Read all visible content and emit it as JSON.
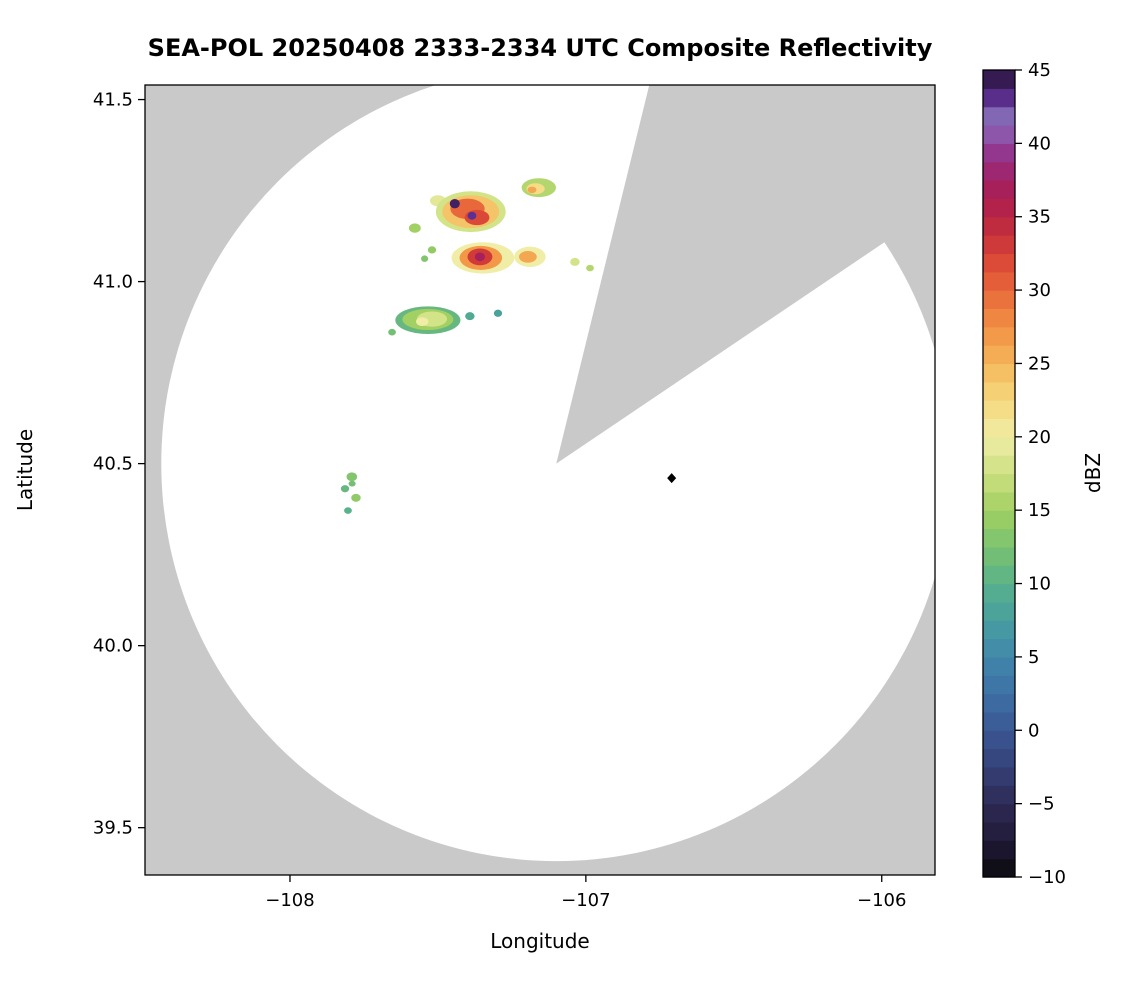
{
  "chart_data": {
    "type": "heatmap",
    "title": "SEA-POL 20250408 2333-2334 UTC Composite Reflectivity",
    "xlabel": "Longitude",
    "ylabel": "Latitude",
    "xlim": [
      -108.49,
      -105.82
    ],
    "ylim": [
      39.37,
      41.54
    ],
    "grid": false,
    "outside_fill": "#c9c9c9",
    "plot_fill": "#ffffff",
    "xticks": [
      {
        "value": -108,
        "label": "−108"
      },
      {
        "value": -107,
        "label": "−107"
      },
      {
        "value": -106,
        "label": "−106"
      }
    ],
    "yticks": [
      {
        "value": 39.5,
        "label": "39.5"
      },
      {
        "value": 40.0,
        "label": "40.0"
      },
      {
        "value": 40.5,
        "label": "40.5"
      },
      {
        "value": 41.0,
        "label": "41.0"
      },
      {
        "value": 41.5,
        "label": "41.5"
      }
    ],
    "coverage": {
      "center_lon": -107.1,
      "center_lat": 40.5,
      "radius_lon_deg": 1.335,
      "radius_lat_deg": 1.092,
      "fill": "#ffffff"
    },
    "blanked_sector": {
      "azimuth_start_deg": 13.8,
      "azimuth_end_deg": 56.0
    },
    "site_marker": {
      "lon": -106.71,
      "lat": 40.46,
      "shape": "diamond",
      "color": "#000000"
    },
    "echoes": [
      {
        "lon": -107.5,
        "lat": 41.222,
        "rx": 0.027,
        "ry": 0.015,
        "dbz": 19
      },
      {
        "lon": -107.389,
        "lat": 41.192,
        "rx": 0.118,
        "ry": 0.056,
        "dbz": 18
      },
      {
        "lon": -107.389,
        "lat": 41.192,
        "rx": 0.096,
        "ry": 0.045,
        "dbz": 24
      },
      {
        "lon": -107.4,
        "lat": 41.2,
        "rx": 0.058,
        "ry": 0.028,
        "dbz": 30
      },
      {
        "lon": -107.368,
        "lat": 41.176,
        "rx": 0.042,
        "ry": 0.021,
        "dbz": 32
      },
      {
        "lon": -107.443,
        "lat": 41.214,
        "rx": 0.017,
        "ry": 0.013,
        "dbz": 44
      },
      {
        "lon": -107.385,
        "lat": 41.181,
        "rx": 0.015,
        "ry": 0.011,
        "dbz": 43
      },
      {
        "lon": -107.159,
        "lat": 41.258,
        "rx": 0.058,
        "ry": 0.026,
        "dbz": 16
      },
      {
        "lon": -107.17,
        "lat": 41.255,
        "rx": 0.031,
        "ry": 0.015,
        "dbz": 22
      },
      {
        "lon": -107.182,
        "lat": 41.252,
        "rx": 0.015,
        "ry": 0.009,
        "dbz": 26
      },
      {
        "lon": -107.578,
        "lat": 41.147,
        "rx": 0.02,
        "ry": 0.013,
        "dbz": 15
      },
      {
        "lon": -107.52,
        "lat": 41.087,
        "rx": 0.014,
        "ry": 0.01,
        "dbz": 14
      },
      {
        "lon": -107.545,
        "lat": 41.063,
        "rx": 0.012,
        "ry": 0.009,
        "dbz": 13
      },
      {
        "lon": -107.348,
        "lat": 41.065,
        "rx": 0.106,
        "ry": 0.043,
        "dbz": 20
      },
      {
        "lon": -107.355,
        "lat": 41.065,
        "rx": 0.072,
        "ry": 0.033,
        "dbz": 27
      },
      {
        "lon": -107.358,
        "lat": 41.068,
        "rx": 0.042,
        "ry": 0.023,
        "dbz": 33
      },
      {
        "lon": -107.358,
        "lat": 41.068,
        "rx": 0.017,
        "ry": 0.012,
        "dbz": 37
      },
      {
        "lon": -107.189,
        "lat": 41.068,
        "rx": 0.053,
        "ry": 0.028,
        "dbz": 20
      },
      {
        "lon": -107.196,
        "lat": 41.068,
        "rx": 0.03,
        "ry": 0.016,
        "dbz": 26
      },
      {
        "lon": -107.037,
        "lat": 41.054,
        "rx": 0.016,
        "ry": 0.011,
        "dbz": 18
      },
      {
        "lon": -106.986,
        "lat": 41.037,
        "rx": 0.013,
        "ry": 0.009,
        "dbz": 16
      },
      {
        "lon": -107.534,
        "lat": 40.894,
        "rx": 0.11,
        "ry": 0.038,
        "dbz": 11
      },
      {
        "lon": -107.534,
        "lat": 40.896,
        "rx": 0.086,
        "ry": 0.029,
        "dbz": 15
      },
      {
        "lon": -107.52,
        "lat": 40.897,
        "rx": 0.051,
        "ry": 0.021,
        "dbz": 18
      },
      {
        "lon": -107.553,
        "lat": 40.89,
        "rx": 0.021,
        "ry": 0.012,
        "dbz": 20
      },
      {
        "lon": -107.392,
        "lat": 40.905,
        "rx": 0.016,
        "ry": 0.011,
        "dbz": 9
      },
      {
        "lon": -107.297,
        "lat": 40.913,
        "rx": 0.014,
        "ry": 0.01,
        "dbz": 8
      },
      {
        "lon": -107.655,
        "lat": 40.861,
        "rx": 0.013,
        "ry": 0.009,
        "dbz": 12
      },
      {
        "lon": -107.791,
        "lat": 40.464,
        "rx": 0.018,
        "ry": 0.012,
        "dbz": 13
      },
      {
        "lon": -107.814,
        "lat": 40.431,
        "rx": 0.014,
        "ry": 0.01,
        "dbz": 11
      },
      {
        "lon": -107.777,
        "lat": 40.406,
        "rx": 0.016,
        "ry": 0.011,
        "dbz": 14
      },
      {
        "lon": -107.804,
        "lat": 40.371,
        "rx": 0.013,
        "ry": 0.009,
        "dbz": 10
      },
      {
        "lon": -107.79,
        "lat": 40.445,
        "rx": 0.012,
        "ry": 0.008,
        "dbz": 12
      }
    ],
    "colorbar": {
      "label": "dBZ",
      "min": -10,
      "max": 45,
      "segments": 44,
      "ticks": [
        {
          "value": -10,
          "label": "−10"
        },
        {
          "value": -5,
          "label": "−5"
        },
        {
          "value": 0,
          "label": "0"
        },
        {
          "value": 5,
          "label": "5"
        },
        {
          "value": 10,
          "label": "10"
        },
        {
          "value": 15,
          "label": "15"
        },
        {
          "value": 20,
          "label": "20"
        },
        {
          "value": 25,
          "label": "25"
        },
        {
          "value": 30,
          "label": "30"
        },
        {
          "value": 35,
          "label": "35"
        },
        {
          "value": 40,
          "label": "40"
        },
        {
          "value": 45,
          "label": "45"
        }
      ],
      "stops": [
        [
          -10,
          "#0a0a0c"
        ],
        [
          -7.5,
          "#201a38"
        ],
        [
          -5,
          "#2e2a55"
        ],
        [
          -2.5,
          "#354078"
        ],
        [
          0,
          "#3a5894"
        ],
        [
          2.5,
          "#3d70a5"
        ],
        [
          5,
          "#4187ab"
        ],
        [
          7.5,
          "#479e9f"
        ],
        [
          10,
          "#58b28b"
        ],
        [
          12.5,
          "#7ac270"
        ],
        [
          15,
          "#a2d063"
        ],
        [
          17.5,
          "#cce080"
        ],
        [
          20,
          "#f0eda6"
        ],
        [
          22.5,
          "#f6d87e"
        ],
        [
          25,
          "#f5b65a"
        ],
        [
          27.5,
          "#f19144"
        ],
        [
          30,
          "#e8683b"
        ],
        [
          32.5,
          "#d64136"
        ],
        [
          35,
          "#b72342"
        ],
        [
          37.5,
          "#a21f62"
        ],
        [
          40,
          "#8e3d9b"
        ],
        [
          41.5,
          "#8f79c0"
        ],
        [
          43,
          "#5c3090"
        ],
        [
          45,
          "#241136"
        ]
      ]
    }
  }
}
